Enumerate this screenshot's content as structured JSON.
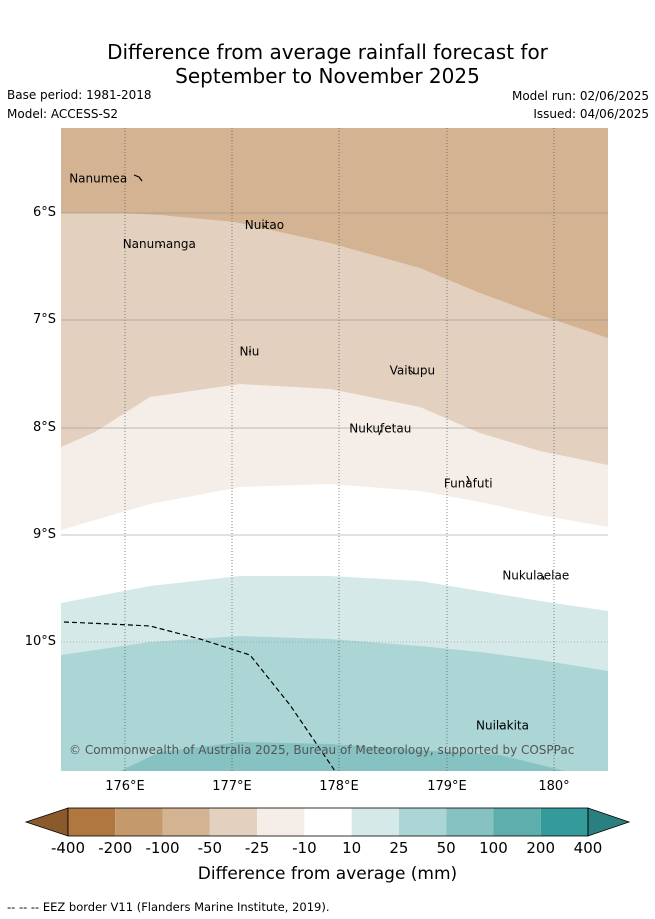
{
  "title_line1": "Difference from average rainfall forecast for",
  "title_line2": "September to November 2025",
  "base_period": "Base period: 1981-2018",
  "model": "Model: ACCESS-S2",
  "model_run": "Model run: 02/06/2025",
  "issued": "Issued: 04/06/2025",
  "copyright": "© Commonwealth of Australia 2025, Bureau of Meteorology, supported by COSPPac",
  "lat_labels": [
    "6°S",
    "7°S",
    "8°S",
    "9°S",
    "10°S"
  ],
  "lon_labels": [
    "176°E",
    "177°E",
    "178°E",
    "179°E",
    "180°"
  ],
  "places": [
    {
      "name": "Nanumea",
      "lon": 175.75,
      "lat": -5.68
    },
    {
      "name": "Nuitao",
      "lon": 177.3,
      "lat": -6.11
    },
    {
      "name": "Nanumanga",
      "lon": 176.32,
      "lat": -6.29
    },
    {
      "name": "Niu",
      "lon": 177.16,
      "lat": -7.29
    },
    {
      "name": "Vaitupu",
      "lon": 178.68,
      "lat": -7.47
    },
    {
      "name": "Nukufetau",
      "lon": 178.38,
      "lat": -8.01
    },
    {
      "name": "Funafuti",
      "lon": 179.2,
      "lat": -8.52
    },
    {
      "name": "Nukulaelae",
      "lon": 179.83,
      "lat": -9.38
    },
    {
      "name": "Nuilakita",
      "lon": 179.52,
      "lat": -10.78
    }
  ],
  "colorbar": {
    "title": "Difference from average (mm)",
    "tick_labels": [
      "-400",
      "-200",
      "-100",
      "-50",
      "-25",
      "-10",
      "10",
      "25",
      "50",
      "100",
      "200",
      "400"
    ],
    "colors": [
      "#8a5a2a",
      "#b07840",
      "#c49a6c",
      "#d4b393",
      "#e3d0bf",
      "#f5ede8",
      "#ffffff",
      "#d5e9e8",
      "#acd6d6",
      "#86c2c2",
      "#5eaeae",
      "#359a9a",
      "#2b7f7f"
    ]
  },
  "footer_note": "-- -- -- EEZ border V11 (Flanders Marine Institute, 2019)."
}
